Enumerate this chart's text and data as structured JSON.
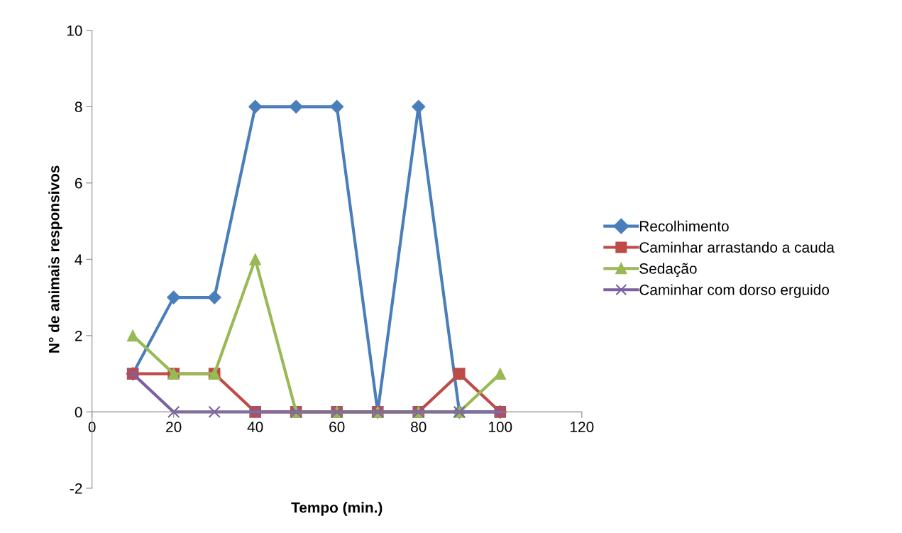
{
  "chart_data": {
    "type": "line",
    "xlabel": "Tempo (min.)",
    "ylabel": "N° de animais responsivos",
    "x": [
      10,
      20,
      30,
      40,
      50,
      60,
      70,
      80,
      90,
      100
    ],
    "series": [
      {
        "name": "Recolhimento",
        "color": "#4a7ebb",
        "marker": "diamond",
        "values": [
          1,
          3,
          3,
          8,
          8,
          8,
          0,
          8,
          0,
          0
        ]
      },
      {
        "name": "Caminhar arrastando a cauda",
        "color": "#be4b48",
        "marker": "square",
        "values": [
          1,
          1,
          1,
          0,
          0,
          0,
          0,
          0,
          1,
          0
        ]
      },
      {
        "name": "Sedação",
        "color": "#98b954",
        "marker": "triangle",
        "values": [
          2,
          1,
          1,
          4,
          0,
          0,
          0,
          0,
          0,
          1
        ]
      },
      {
        "name": "Caminhar com dorso erguido",
        "color": "#7d60a0",
        "marker": "cross",
        "values": [
          1,
          0,
          0,
          0,
          0,
          0,
          0,
          0,
          0,
          0
        ]
      }
    ],
    "xlim": [
      0,
      120
    ],
    "xticks": [
      0,
      20,
      40,
      60,
      80,
      100,
      120
    ],
    "ylim": [
      -2,
      10
    ],
    "yticks": [
      -2,
      0,
      2,
      4,
      6,
      8,
      10
    ],
    "grid": false,
    "legend": "right",
    "line_style": "solid"
  }
}
